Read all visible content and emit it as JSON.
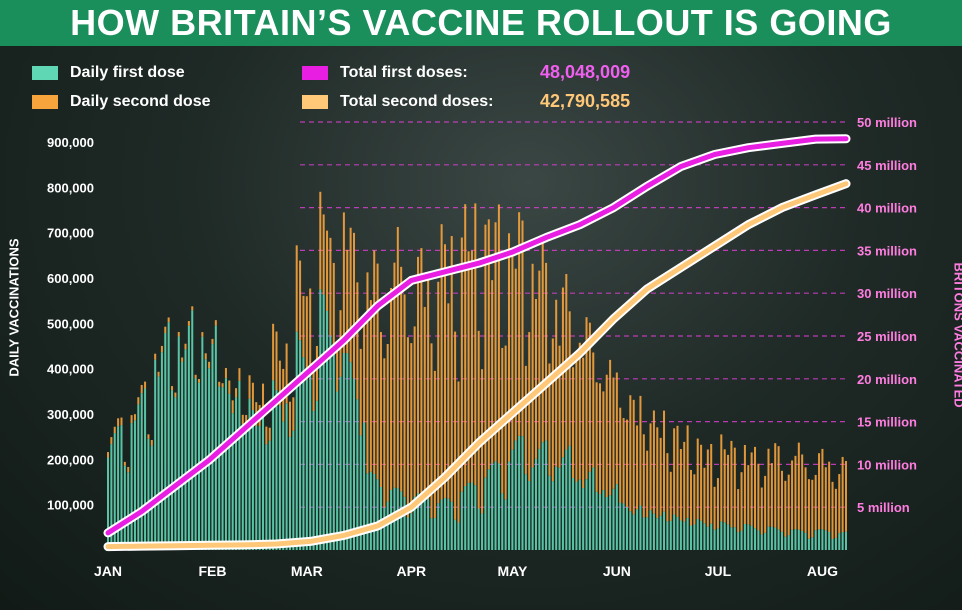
{
  "title": "HOW BRITAIN’S VACCINE ROLLOUT IS GOING",
  "legend": {
    "daily_first": "Daily first dose",
    "daily_second": "Daily second dose",
    "total_first": "Total first doses:",
    "total_second": "Total second doses:",
    "total_first_value": "48,048,009",
    "total_second_value": "42,790,585"
  },
  "colors": {
    "daily_first": "#5fd6b4",
    "daily_second": "#f7a43c",
    "total_first": "#e81fe3",
    "total_second": "#ffc778",
    "title_bg": "#1a8f5c",
    "right_axis": "#ff7de0"
  },
  "chart_data": {
    "type": "bar",
    "ylabel": "DAILY VACCINATIONS",
    "y2label": "BRITONS VACCINATED",
    "months": [
      "JAN",
      "FEB",
      "MAR",
      "APR",
      "MAY",
      "JUN",
      "JUL",
      "AUG"
    ],
    "yticks": [
      "100,000",
      "200,000",
      "300,000",
      "400,000",
      "500,000",
      "600,000",
      "700,000",
      "800,000",
      "900,000"
    ],
    "y2ticks": [
      "5 million",
      "10 million",
      "15 million",
      "20 million",
      "25 million",
      "30 million",
      "35 million",
      "40 million",
      "45 million",
      "50 million"
    ],
    "ylim": [
      0,
      900000
    ],
    "y2lim": [
      0,
      50000000
    ],
    "days": 220,
    "daily_first_by_week": [
      240000,
      310000,
      440000,
      470000,
      450000,
      350000,
      300000,
      330000,
      420000,
      500000,
      380000,
      150000,
      120000,
      110000,
      100000,
      130000,
      170000,
      220000,
      210000,
      200000,
      160000,
      130000,
      90000,
      80000,
      70000,
      60000,
      55000,
      50000,
      45000,
      40000,
      40000,
      35000
    ],
    "daily_second_by_week": [
      15000,
      15000,
      12000,
      10000,
      12000,
      25000,
      50000,
      110000,
      160000,
      180000,
      270000,
      420000,
      480000,
      460000,
      510000,
      520000,
      480000,
      420000,
      380000,
      330000,
      300000,
      250000,
      220000,
      190000,
      170000,
      150000,
      160000,
      150000,
      160000,
      160000,
      150000,
      140000
    ],
    "total_first_points": [
      [
        0,
        2.0
      ],
      [
        10,
        4.5
      ],
      [
        20,
        7.5
      ],
      [
        30,
        10.5
      ],
      [
        40,
        14.0
      ],
      [
        50,
        17.5
      ],
      [
        60,
        21.0
      ],
      [
        70,
        24.5
      ],
      [
        80,
        28.5
      ],
      [
        90,
        31.5
      ],
      [
        100,
        32.5
      ],
      [
        110,
        33.5
      ],
      [
        120,
        34.8
      ],
      [
        130,
        36.5
      ],
      [
        140,
        38.0
      ],
      [
        150,
        40.0
      ],
      [
        160,
        42.5
      ],
      [
        170,
        44.8
      ],
      [
        180,
        46.2
      ],
      [
        190,
        47.0
      ],
      [
        200,
        47.5
      ],
      [
        210,
        48.0
      ],
      [
        219,
        48.05
      ]
    ],
    "total_second_points": [
      [
        0,
        0.4
      ],
      [
        10,
        0.45
      ],
      [
        20,
        0.5
      ],
      [
        30,
        0.55
      ],
      [
        40,
        0.6
      ],
      [
        50,
        0.7
      ],
      [
        60,
        1.0
      ],
      [
        70,
        1.7
      ],
      [
        80,
        2.8
      ],
      [
        90,
        5.0
      ],
      [
        100,
        8.5
      ],
      [
        110,
        12.5
      ],
      [
        120,
        16.0
      ],
      [
        130,
        19.5
      ],
      [
        140,
        23.0
      ],
      [
        150,
        27.0
      ],
      [
        160,
        30.5
      ],
      [
        170,
        33.0
      ],
      [
        180,
        35.5
      ],
      [
        190,
        38.0
      ],
      [
        200,
        40.0
      ],
      [
        210,
        41.5
      ],
      [
        219,
        42.79
      ]
    ]
  }
}
